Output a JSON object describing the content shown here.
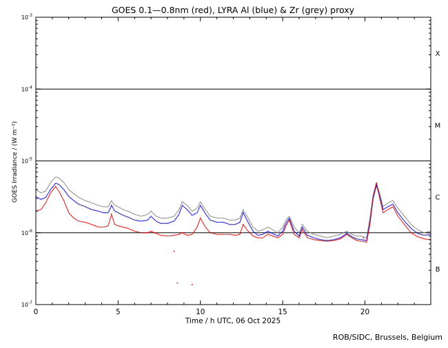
{
  "chart_data": {
    "type": "line",
    "title": "GOES 0.1—0.8nm (red), LYRA Al (blue) & Zr (grey) proxy",
    "xlabel": "Time / h UTC, 06 Oct 2025",
    "ylabel": "GOES Irradiance / (W m⁻²)",
    "xlim": [
      0,
      24
    ],
    "ylim": [
      1e-07,
      0.001
    ],
    "y_scale": "log",
    "x_ticks": [
      0,
      5,
      10,
      15,
      20
    ],
    "y_ticks": [
      {
        "value": 1e-07,
        "base": "10",
        "exp": "-7"
      },
      {
        "value": 1e-06,
        "base": "10",
        "exp": "-6"
      },
      {
        "value": 1e-05,
        "base": "10",
        "exp": "-5"
      },
      {
        "value": 0.0001,
        "base": "10",
        "exp": "-4"
      },
      {
        "value": 0.001,
        "base": "10",
        "exp": "-3"
      }
    ],
    "flare_class_lines": [
      1e-06,
      1e-05,
      0.0001
    ],
    "flare_classes": [
      {
        "label": "X",
        "value": 0.000316
      },
      {
        "label": "M",
        "value": 3.16e-05
      },
      {
        "label": "C",
        "value": 3.16e-06
      },
      {
        "label": "B",
        "value": 3.16e-07
      }
    ],
    "series": [
      {
        "color": "#808080",
        "x": [
          0,
          0.3,
          0.6,
          0.9,
          1.2,
          1.4,
          1.7,
          2.0,
          2.3,
          2.6,
          3.0,
          3.4,
          3.8,
          4.1,
          4.4,
          4.6,
          4.8,
          5.0,
          5.3,
          5.6,
          6.0,
          6.4,
          6.8,
          7.0,
          7.3,
          7.6,
          8.0,
          8.4,
          8.7,
          8.9,
          9.2,
          9.5,
          9.8,
          10.0,
          10.3,
          10.6,
          11.0,
          11.4,
          11.8,
          12.1,
          12.4,
          12.6,
          12.9,
          13.2,
          13.5,
          13.8,
          14.1,
          14.4,
          14.7,
          15.0,
          15.2,
          15.4,
          15.7,
          16.0,
          16.2,
          16.5,
          16.9,
          17.3,
          17.7,
          18.1,
          18.5,
          18.9,
          19.2,
          19.5,
          19.8,
          20.1,
          20.3,
          20.5,
          20.7,
          20.9,
          21.1,
          21.4,
          21.7,
          22.0,
          22.4,
          22.8,
          23.2,
          23.6,
          24
        ],
        "y": [
          4e-06,
          3.6e-06,
          3.8e-06,
          5e-06,
          6e-06,
          5.8e-06,
          5e-06,
          4e-06,
          3.5e-06,
          3.1e-06,
          2.8e-06,
          2.6e-06,
          2.4e-06,
          2.3e-06,
          2.3e-06,
          2.8e-06,
          2.4e-06,
          2.3e-06,
          2.1e-06,
          2e-06,
          1.8e-06,
          1.7e-06,
          1.8e-06,
          2e-06,
          1.7e-06,
          1.6e-06,
          1.6e-06,
          1.7e-06,
          2.1e-06,
          2.7e-06,
          2.4e-06,
          2e-06,
          2.2e-06,
          2.7e-06,
          2.1e-06,
          1.7e-06,
          1.6e-06,
          1.6e-06,
          1.5e-06,
          1.5e-06,
          1.6e-06,
          2.1e-06,
          1.6e-06,
          1.2e-06,
          1.05e-06,
          1.1e-06,
          1.2e-06,
          1.1e-06,
          1e-06,
          1.2e-06,
          1.5e-06,
          1.7e-06,
          1.2e-06,
          1e-06,
          1.3e-06,
          1.05e-06,
          9.5e-07,
          9e-07,
          8.5e-07,
          9e-07,
          9.5e-07,
          1.05e-06,
          9.5e-07,
          9e-07,
          9e-07,
          8.5e-07,
          1.6e-06,
          3.3e-06,
          4.8e-06,
          3.5e-06,
          2.3e-06,
          2.6e-06,
          2.8e-06,
          2.2e-06,
          1.7e-06,
          1.3e-06,
          1.1e-06,
          1e-06,
          1.05e-06
        ]
      },
      {
        "color": "#0000c8",
        "x": [
          0,
          0.3,
          0.6,
          0.9,
          1.2,
          1.4,
          1.7,
          2.0,
          2.3,
          2.6,
          3.0,
          3.4,
          3.8,
          4.1,
          4.4,
          4.6,
          4.8,
          5.0,
          5.3,
          5.6,
          6.0,
          6.4,
          6.8,
          7.0,
          7.3,
          7.6,
          8.0,
          8.4,
          8.7,
          8.9,
          9.2,
          9.5,
          9.8,
          10.0,
          10.3,
          10.6,
          11.0,
          11.4,
          11.8,
          12.1,
          12.4,
          12.6,
          12.9,
          13.2,
          13.5,
          13.8,
          14.1,
          14.4,
          14.7,
          15.0,
          15.2,
          15.4,
          15.7,
          16.0,
          16.2,
          16.5,
          16.9,
          17.3,
          17.7,
          18.1,
          18.5,
          18.9,
          19.2,
          19.5,
          19.8,
          20.1,
          20.3,
          20.5,
          20.7,
          20.9,
          21.1,
          21.4,
          21.7,
          22.0,
          22.4,
          22.8,
          23.2,
          23.6,
          24
        ],
        "y": [
          3.2e-06,
          2.9e-06,
          3.1e-06,
          4e-06,
          4.9e-06,
          4.7e-06,
          4e-06,
          3.2e-06,
          2.8e-06,
          2.5e-06,
          2.3e-06,
          2.1e-06,
          2e-06,
          1.9e-06,
          1.9e-06,
          2.4e-06,
          2e-06,
          1.9e-06,
          1.75e-06,
          1.65e-06,
          1.5e-06,
          1.45e-06,
          1.5e-06,
          1.7e-06,
          1.45e-06,
          1.35e-06,
          1.35e-06,
          1.45e-06,
          1.8e-06,
          2.4e-06,
          2.1e-06,
          1.75e-06,
          1.9e-06,
          2.4e-06,
          1.85e-06,
          1.5e-06,
          1.4e-06,
          1.4e-06,
          1.3e-06,
          1.3e-06,
          1.4e-06,
          1.9e-06,
          1.4e-06,
          1.05e-06,
          9.2e-07,
          9.5e-07,
          1.05e-06,
          9.7e-07,
          9e-07,
          1.05e-06,
          1.35e-06,
          1.6e-06,
          1.05e-06,
          9e-07,
          1.2e-06,
          9.2e-07,
          8.5e-07,
          8e-07,
          7.8e-07,
          8e-07,
          8.5e-07,
          9.8e-07,
          8.8e-07,
          8.2e-07,
          8e-07,
          7.8e-07,
          1.4e-06,
          3e-06,
          4.6e-06,
          3.2e-06,
          2.1e-06,
          2.3e-06,
          2.5e-06,
          1.9e-06,
          1.45e-06,
          1.15e-06,
          9.8e-07,
          9.2e-07,
          9.5e-07
        ]
      },
      {
        "color": "#d00000",
        "x": [
          0,
          0.3,
          0.6,
          0.9,
          1.2,
          1.4,
          1.7,
          2.0,
          2.3,
          2.6,
          3.0,
          3.4,
          3.8,
          4.1,
          4.4,
          4.6,
          4.8,
          5.0,
          5.3,
          5.6,
          6.0,
          6.4,
          6.8,
          7.0,
          7.3,
          7.6,
          8.0,
          8.4,
          8.7,
          8.9,
          9.2,
          9.5,
          9.8,
          10.0,
          10.3,
          10.6,
          11.0,
          11.4,
          11.8,
          12.1,
          12.4,
          12.6,
          12.9,
          13.2,
          13.5,
          13.8,
          14.1,
          14.4,
          14.7,
          15.0,
          15.2,
          15.4,
          15.7,
          16.0,
          16.2,
          16.5,
          16.9,
          17.3,
          17.7,
          18.1,
          18.5,
          18.9,
          19.2,
          19.5,
          19.8,
          20.1,
          20.3,
          20.5,
          20.7,
          20.9,
          21.1,
          21.4,
          21.7,
          22.0,
          22.4,
          22.8,
          23.2,
          23.6,
          24
        ],
        "y": [
          2e-06,
          2.1e-06,
          2.6e-06,
          3.6e-06,
          4.4e-06,
          3.8e-06,
          2.8e-06,
          1.9e-06,
          1.6e-06,
          1.45e-06,
          1.4e-06,
          1.3e-06,
          1.2e-06,
          1.2e-06,
          1.25e-06,
          1.8e-06,
          1.3e-06,
          1.25e-06,
          1.2e-06,
          1.15e-06,
          1.05e-06,
          1e-06,
          1e-06,
          1.05e-06,
          9.8e-07,
          9.2e-07,
          9e-07,
          9.2e-07,
          9.5e-07,
          1e-06,
          9.2e-07,
          9.5e-07,
          1.2e-06,
          1.6e-06,
          1.2e-06,
          1e-06,
          9.5e-07,
          9.5e-07,
          9.5e-07,
          9.2e-07,
          9.5e-07,
          1.3e-06,
          1.05e-06,
          9e-07,
          8.5e-07,
          8.5e-07,
          9.5e-07,
          9e-07,
          8.5e-07,
          9.5e-07,
          1.25e-06,
          1.5e-06,
          9.5e-07,
          8.5e-07,
          1.1e-06,
          8.5e-07,
          8e-07,
          7.8e-07,
          7.6e-07,
          7.8e-07,
          8.2e-07,
          9.5e-07,
          8.5e-07,
          7.8e-07,
          7.6e-07,
          7.4e-07,
          1.3e-06,
          3.2e-06,
          5e-06,
          3e-06,
          1.9e-06,
          2.1e-06,
          2.3e-06,
          1.7e-06,
          1.3e-06,
          1e-06,
          8.8e-07,
          8.2e-07,
          8e-07
        ]
      }
    ],
    "outlier_points": {
      "color": "#d00000",
      "x": [
        8.4,
        8.6,
        9.5,
        19.9
      ],
      "y": [
        5.5e-07,
        2e-07,
        1.9e-07,
        8.5e-07
      ]
    }
  },
  "credit": "ROB/SIDC, Brussels, Belgium"
}
